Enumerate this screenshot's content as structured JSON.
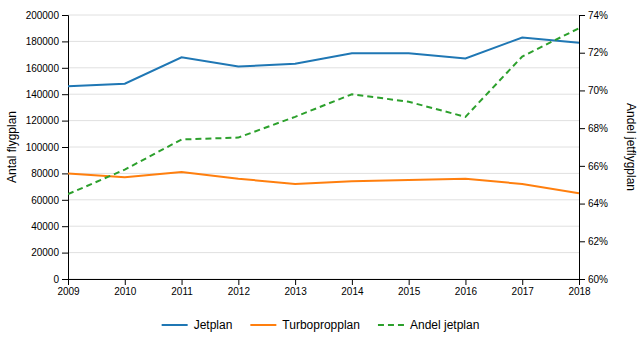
{
  "chart_data": {
    "type": "line",
    "x": [
      2009,
      2010,
      2011,
      2012,
      2013,
      2014,
      2015,
      2016,
      2017,
      2018
    ],
    "xlim": [
      2009,
      2018
    ],
    "xticks": [
      2009,
      2010,
      2011,
      2012,
      2013,
      2014,
      2015,
      2016,
      2017,
      2018
    ],
    "ylim": [
      0,
      200000
    ],
    "yticks": [
      0,
      20000,
      40000,
      60000,
      80000,
      100000,
      120000,
      140000,
      160000,
      180000,
      200000
    ],
    "y_label": "Antal flygplan",
    "y2lim": [
      0.6,
      0.74
    ],
    "y2ticks": [
      {
        "value": 0.6,
        "label": "60%"
      },
      {
        "value": 0.62,
        "label": "62%"
      },
      {
        "value": 0.64,
        "label": "64%"
      },
      {
        "value": 0.66,
        "label": "66%"
      },
      {
        "value": 0.68,
        "label": "68%"
      },
      {
        "value": 0.7,
        "label": "70%"
      },
      {
        "value": 0.72,
        "label": "72%"
      },
      {
        "value": 0.74,
        "label": "74%"
      }
    ],
    "y2_label": "Andel jetflygplan",
    "grid": true,
    "legend": "bottom",
    "series": [
      {
        "name": "Jetplan",
        "values": [
          146000,
          148000,
          168000,
          161000,
          163000,
          171000,
          171000,
          167000,
          183000,
          179000
        ]
      },
      {
        "name": "Turbopropplan",
        "values": [
          80000,
          77000,
          81000,
          76000,
          72000,
          74000,
          75000,
          76000,
          72000,
          65000
        ]
      },
      {
        "name": "Andel jetplan",
        "values": [
          0.645,
          0.658,
          0.674,
          0.675,
          0.686,
          0.698,
          0.694,
          0.686,
          0.718,
          0.733
        ],
        "axis": "y2",
        "line_style": "dashed"
      }
    ]
  }
}
